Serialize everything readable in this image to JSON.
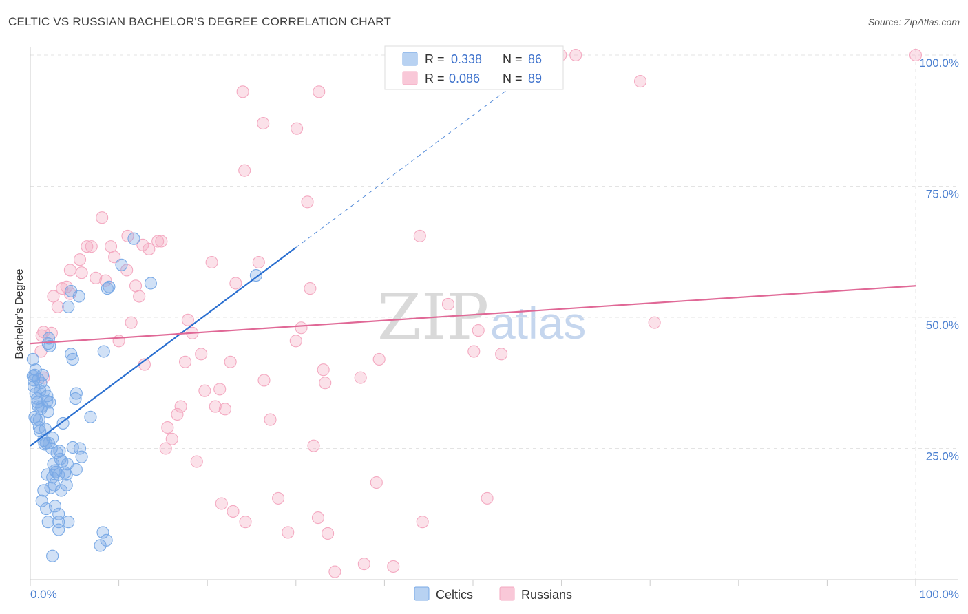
{
  "title": "CELTIC VS RUSSIAN BACHELOR'S DEGREE CORRELATION CHART",
  "source": "Source: ZipAtlas.com",
  "watermark": {
    "zip": "ZIP",
    "atlas": "atlas"
  },
  "colors": {
    "celtics": "#7aaae6",
    "celtics_line": "#2a6fd0",
    "russians": "#f4a9c1",
    "russians_line": "#e06896",
    "axis_text": "#4a7fd0",
    "grid": "#e3e3e3"
  },
  "legend": {
    "r_label": "R =",
    "n_label": "N =",
    "items": [
      {
        "name": "Celtics",
        "r": "0.338",
        "n": "86"
      },
      {
        "name": "Russians",
        "r": "0.086",
        "n": "89"
      }
    ]
  },
  "chart_data": {
    "type": "scatter",
    "title": "CELTIC VS RUSSIAN BACHELOR'S DEGREE CORRELATION CHART",
    "xlabel": "",
    "ylabel": "Bachelor's Degree",
    "xlim": [
      0,
      100
    ],
    "ylim": [
      0,
      100
    ],
    "x_tick_labels": [
      "0.0%",
      "100.0%"
    ],
    "y_ticks": [
      25,
      50,
      75,
      100
    ],
    "y_tick_labels": [
      "25.0%",
      "50.0%",
      "75.0%",
      "100.0%"
    ],
    "grid": true,
    "legend_position": "top-center",
    "series": [
      {
        "name": "Celtics",
        "r": 0.338,
        "n": 86,
        "trend": {
          "x0": 0,
          "y0": 25.5,
          "x1": 30,
          "y1": 63.3,
          "dashed_to_x": 55
        },
        "points": [
          [
            0.3,
            42
          ],
          [
            0.5,
            39
          ],
          [
            0.4,
            38
          ],
          [
            0.6,
            35.5
          ],
          [
            0.8,
            34.5
          ],
          [
            0.9,
            33
          ],
          [
            0.5,
            31
          ],
          [
            0.7,
            30.5
          ],
          [
            1,
            29
          ],
          [
            1.2,
            37.5
          ],
          [
            1.1,
            36
          ],
          [
            1.4,
            39
          ],
          [
            1.6,
            36
          ],
          [
            1.3,
            33
          ],
          [
            2,
            32
          ],
          [
            1.9,
            35
          ],
          [
            2.2,
            33.8
          ],
          [
            1.7,
            28.7
          ],
          [
            2.5,
            27
          ],
          [
            2.1,
            26
          ],
          [
            1.8,
            26
          ],
          [
            2.4,
            25
          ],
          [
            3.3,
            24.5
          ],
          [
            3.4,
            23
          ],
          [
            2.6,
            22
          ],
          [
            3.6,
            22.5
          ],
          [
            4.1,
            20
          ],
          [
            2.9,
            20.5
          ],
          [
            1.9,
            20
          ],
          [
            3.2,
            20
          ],
          [
            2.5,
            19.5
          ],
          [
            4.1,
            18
          ],
          [
            5.2,
            21
          ],
          [
            3.5,
            17
          ],
          [
            2.3,
            17.5
          ],
          [
            1.5,
            17
          ],
          [
            1.3,
            15
          ],
          [
            2.8,
            14
          ],
          [
            1.8,
            13.5
          ],
          [
            3.2,
            12.5
          ],
          [
            4.3,
            11
          ],
          [
            2,
            11
          ],
          [
            3.2,
            11
          ],
          [
            3.2,
            9.5
          ],
          [
            8.2,
            9
          ],
          [
            8.6,
            7.5
          ],
          [
            7.9,
            6.5
          ],
          [
            2.5,
            4.5
          ],
          [
            6.8,
            31
          ],
          [
            5.2,
            35.5
          ],
          [
            5.1,
            34.5
          ],
          [
            4.8,
            42
          ],
          [
            4.6,
            43
          ],
          [
            8.3,
            43.5
          ],
          [
            2,
            45
          ],
          [
            2.1,
            46
          ],
          [
            2.2,
            44.5
          ],
          [
            4.3,
            52
          ],
          [
            5.5,
            54
          ],
          [
            4.6,
            55
          ],
          [
            8.7,
            55.5
          ],
          [
            8.9,
            55.8
          ],
          [
            10.3,
            60
          ],
          [
            11.7,
            65
          ],
          [
            13.6,
            56.5
          ],
          [
            25.5,
            58
          ],
          [
            3.7,
            29.8
          ],
          [
            4.8,
            25.2
          ],
          [
            5.6,
            25
          ],
          [
            5.8,
            23.4
          ],
          [
            0.6,
            40
          ],
          [
            0.9,
            38.2
          ],
          [
            1,
            30.5
          ],
          [
            0.3,
            38.8
          ],
          [
            1.5,
            26.5
          ],
          [
            2.8,
            20.8
          ],
          [
            1.2,
            32.5
          ],
          [
            0.4,
            36.8
          ],
          [
            1.9,
            34
          ],
          [
            1.1,
            28.3
          ],
          [
            2.7,
            18
          ],
          [
            4.2,
            22
          ],
          [
            3,
            24.2
          ],
          [
            0.8,
            33.8
          ],
          [
            3.9,
            20.4
          ],
          [
            1.6,
            25.8
          ]
        ]
      },
      {
        "name": "Russians",
        "r": 0.086,
        "n": 89,
        "trend": {
          "x0": 0,
          "y0": 45,
          "x1": 100,
          "y1": 56
        },
        "points": [
          [
            1.5,
            38.5
          ],
          [
            1.3,
            46.5
          ],
          [
            1.5,
            47.2
          ],
          [
            2.4,
            47
          ],
          [
            1.2,
            43.5
          ],
          [
            2.6,
            54
          ],
          [
            3.1,
            52
          ],
          [
            3.6,
            55.5
          ],
          [
            4.1,
            55.8
          ],
          [
            4.5,
            54.5
          ],
          [
            4.5,
            59
          ],
          [
            5.6,
            61
          ],
          [
            5.8,
            58.5
          ],
          [
            6.4,
            63.5
          ],
          [
            6.9,
            63.5
          ],
          [
            7.4,
            57.5
          ],
          [
            8.1,
            69
          ],
          [
            8.5,
            57
          ],
          [
            9.1,
            63.5
          ],
          [
            9.5,
            61.5
          ],
          [
            10,
            45.5
          ],
          [
            11,
            65.5
          ],
          [
            10.9,
            59
          ],
          [
            11.4,
            49
          ],
          [
            11.9,
            56
          ],
          [
            12.3,
            54
          ],
          [
            12.7,
            63.8
          ],
          [
            12.9,
            41
          ],
          [
            13.4,
            63
          ],
          [
            14.4,
            64.5
          ],
          [
            14.8,
            64.5
          ],
          [
            15.3,
            25
          ],
          [
            16,
            26.8
          ],
          [
            15.5,
            29
          ],
          [
            16.6,
            31.5
          ],
          [
            17,
            33
          ],
          [
            17.5,
            41.5
          ],
          [
            17.8,
            49.5
          ],
          [
            18.3,
            47
          ],
          [
            18.8,
            22.5
          ],
          [
            19.3,
            43
          ],
          [
            19.7,
            36
          ],
          [
            20.5,
            60.5
          ],
          [
            20.9,
            33
          ],
          [
            21.4,
            36.3
          ],
          [
            21.6,
            14.5
          ],
          [
            22,
            32.5
          ],
          [
            22.6,
            41.5
          ],
          [
            22.9,
            13
          ],
          [
            23.2,
            56.5
          ],
          [
            24,
            93
          ],
          [
            24.2,
            78
          ],
          [
            24.3,
            11
          ],
          [
            25.8,
            60.5
          ],
          [
            26.3,
            87
          ],
          [
            26.4,
            38
          ],
          [
            27.1,
            30.5
          ],
          [
            28,
            15.5
          ],
          [
            29.1,
            9
          ],
          [
            30,
            45.5
          ],
          [
            30.1,
            86
          ],
          [
            30.6,
            48
          ],
          [
            31.3,
            72
          ],
          [
            31.6,
            55.5
          ],
          [
            32,
            25.5
          ],
          [
            32.5,
            11.8
          ],
          [
            32.6,
            93
          ],
          [
            33.1,
            40
          ],
          [
            33.3,
            37.5
          ],
          [
            33.6,
            8.8
          ],
          [
            34.4,
            1.5
          ],
          [
            37.3,
            38.5
          ],
          [
            37.7,
            3
          ],
          [
            39.1,
            18.5
          ],
          [
            39.4,
            42
          ],
          [
            41,
            2.5
          ],
          [
            44,
            65.5
          ],
          [
            44.3,
            11
          ],
          [
            47.2,
            52.5
          ],
          [
            50.1,
            43.5
          ],
          [
            50.6,
            47.5
          ],
          [
            51.6,
            15.5
          ],
          [
            53.2,
            43
          ],
          [
            59.5,
            100
          ],
          [
            59.9,
            100
          ],
          [
            61.6,
            100
          ],
          [
            68.9,
            95
          ],
          [
            70.5,
            49
          ],
          [
            100,
            100
          ]
        ]
      }
    ]
  }
}
